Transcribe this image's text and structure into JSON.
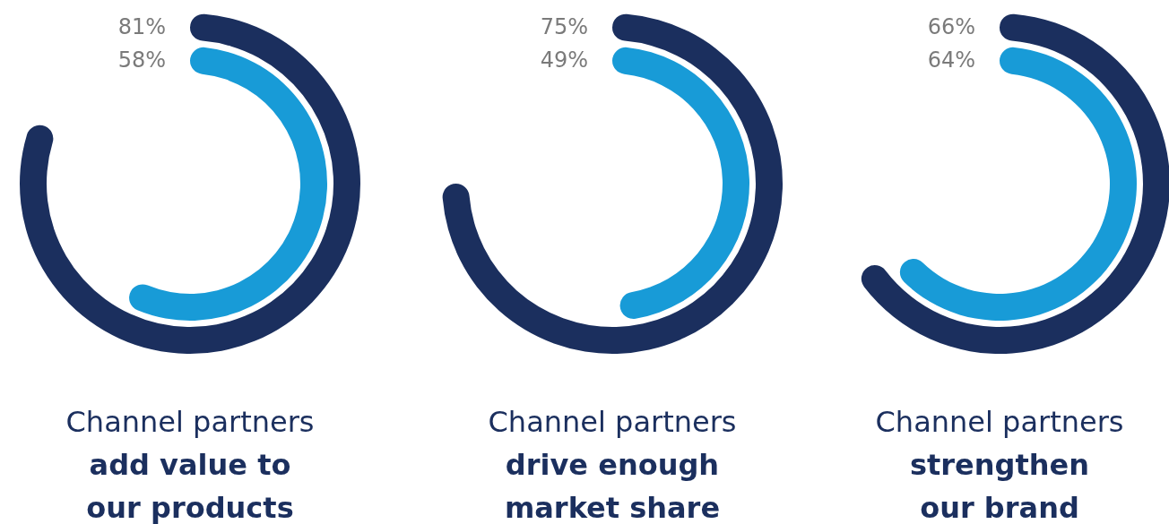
{
  "chart_data": [
    {
      "type": "other",
      "title": "Channel partners",
      "subtitle": "add value to our products",
      "values": [
        81,
        58
      ],
      "colors": [
        "#1b2f5e",
        "#189bd7"
      ],
      "value_labels": [
        "81%",
        "58%"
      ]
    },
    {
      "type": "other",
      "title": "Channel partners",
      "subtitle": "drive enough market share",
      "values": [
        75,
        49
      ],
      "colors": [
        "#1b2f5e",
        "#189bd7"
      ],
      "value_labels": [
        "75%",
        "49%"
      ]
    },
    {
      "type": "other",
      "title": "Channel partners",
      "subtitle": "strengthen our brand",
      "values": [
        66,
        64
      ],
      "colors": [
        "#1b2f5e",
        "#189bd7"
      ],
      "value_labels": [
        "66%",
        "64%"
      ]
    }
  ]
}
